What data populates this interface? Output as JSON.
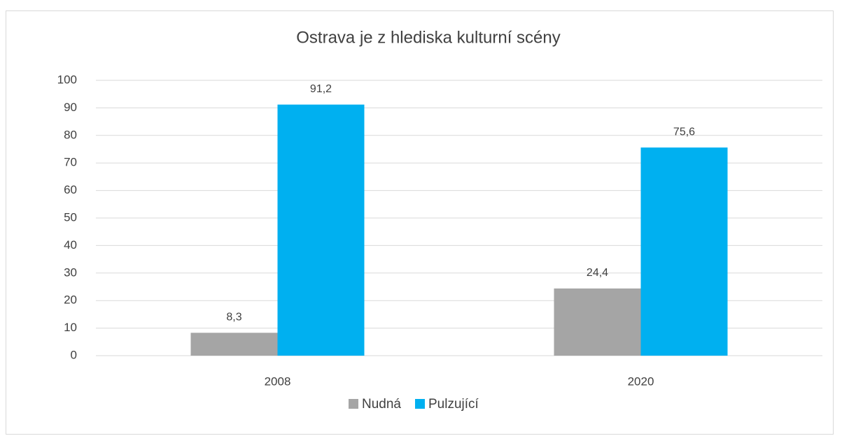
{
  "chart_data": {
    "type": "bar",
    "title": "Ostrava je z hlediska kulturní scény",
    "categories": [
      "2008",
      "2020"
    ],
    "series": [
      {
        "name": "Nudná",
        "color": "#a5a5a5",
        "values": [
          8.3,
          24.4
        ],
        "value_labels": [
          "8,3",
          "24,4"
        ]
      },
      {
        "name": "Pulzující",
        "color": "#00b0f0",
        "values": [
          91.2,
          75.6
        ],
        "value_labels": [
          "91,2",
          "75,6"
        ]
      }
    ],
    "ylim": [
      0,
      100
    ],
    "yticks": [
      0,
      10,
      20,
      30,
      40,
      50,
      60,
      70,
      80,
      90,
      100
    ],
    "grid": true,
    "legend": "bottom"
  }
}
